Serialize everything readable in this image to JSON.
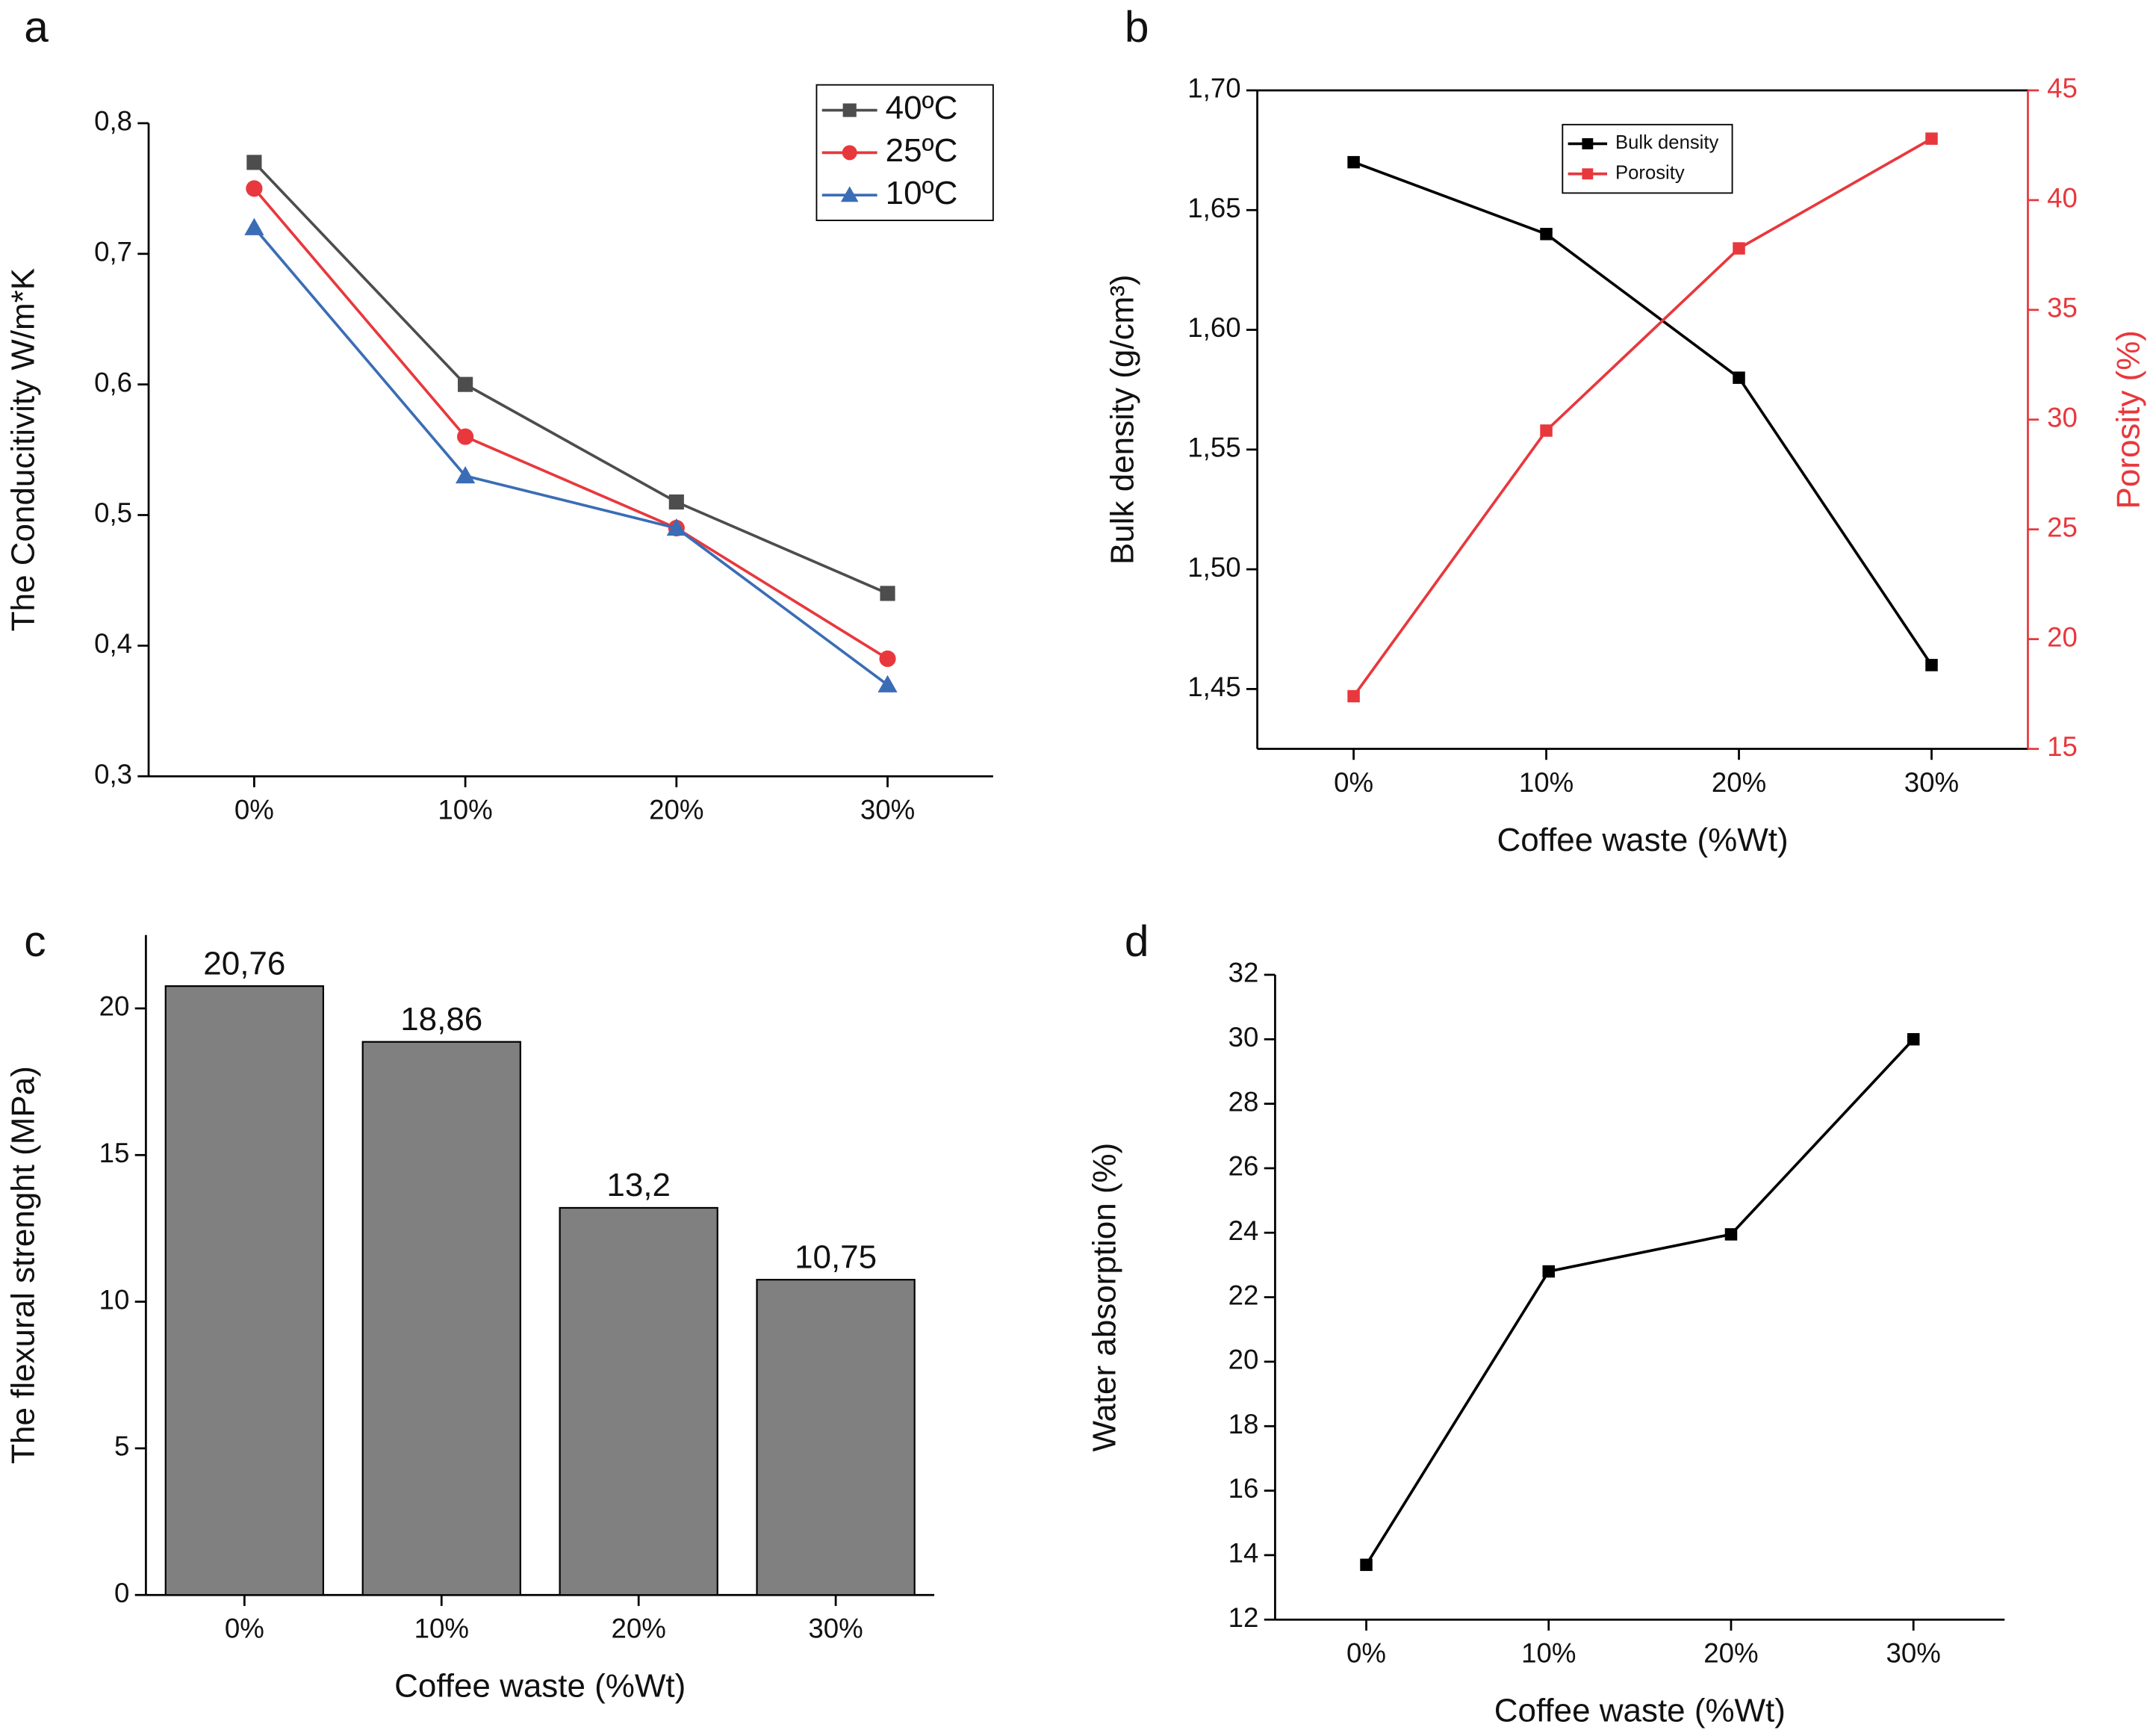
{
  "chart_data": [
    {
      "type": "line",
      "panel": "a",
      "y_label": "The Conducitivity W/m*K",
      "categories": [
        "0%",
        "10%",
        "20%",
        "30%"
      ],
      "series": [
        {
          "name": "40ºC",
          "color": "#4d4d4d",
          "marker": "square",
          "values": [
            0.77,
            0.6,
            0.51,
            0.44
          ]
        },
        {
          "name": "25ºC",
          "color": "#e8383d",
          "marker": "circle",
          "values": [
            0.75,
            0.56,
            0.49,
            0.39
          ]
        },
        {
          "name": "10ºC",
          "color": "#3a6db5",
          "marker": "triangle",
          "values": [
            0.72,
            0.53,
            0.49,
            0.37
          ]
        }
      ],
      "ylim": [
        0.3,
        0.8
      ],
      "yticks": [
        {
          "value": 0.3,
          "label": "0,3"
        },
        {
          "value": 0.4,
          "label": "0,4"
        },
        {
          "value": 0.5,
          "label": "0,5"
        },
        {
          "value": 0.6,
          "label": "0,6"
        },
        {
          "value": 0.7,
          "label": "0,7"
        },
        {
          "value": 0.8,
          "label": "0,8"
        }
      ],
      "legend": "upper right",
      "frame": false
    },
    {
      "type": "line",
      "panel": "b",
      "x_label": "Coffee waste (%Wt)",
      "y_label": "Bulk density (g/cm³)",
      "y2_label": "Porosity (%)",
      "categories": [
        "0%",
        "10%",
        "20%",
        "30%"
      ],
      "series": [
        {
          "name": "Bulk density",
          "color": "#000000",
          "marker": "square",
          "values": [
            1.67,
            1.64,
            1.58,
            1.46
          ]
        },
        {
          "name": "Porosity",
          "color": "#e8383d",
          "marker": "square",
          "axis": "y2",
          "values": [
            17.4,
            29.5,
            37.8,
            42.8
          ]
        }
      ],
      "ylim": [
        1.425,
        1.7
      ],
      "yticks": [
        {
          "value": 1.45,
          "label": "1,45"
        },
        {
          "value": 1.5,
          "label": "1,50"
        },
        {
          "value": 1.55,
          "label": "1,55"
        },
        {
          "value": 1.6,
          "label": "1,60"
        },
        {
          "value": 1.65,
          "label": "1,65"
        },
        {
          "value": 1.7,
          "label": "1,70"
        }
      ],
      "y2lim": [
        15,
        45
      ],
      "y2ticks": [
        15,
        20,
        25,
        30,
        35,
        40,
        45
      ],
      "y2color": "#e8383d",
      "legend": "upper center",
      "frame": true
    },
    {
      "type": "bar",
      "panel": "c",
      "x_label": "Coffee waste (%Wt)",
      "y_label": "The flexural strenght (MPa)",
      "categories": [
        "0%",
        "10%",
        "20%",
        "30%"
      ],
      "values": [
        20.76,
        18.86,
        13.2,
        10.75
      ],
      "value_labels": [
        "20,76",
        "18,86",
        "13,2",
        "10,75"
      ],
      "color": "#808080",
      "ylim": [
        0,
        22.5
      ],
      "yticks": [
        0,
        5,
        10,
        15,
        20
      ],
      "frame": false
    },
    {
      "type": "line",
      "panel": "d",
      "x_label": "Coffee waste (%Wt)",
      "y_label": "Water absorption (%)",
      "categories": [
        "0%",
        "10%",
        "20%",
        "30%"
      ],
      "series": [
        {
          "color": "#000000",
          "marker": "square",
          "values": [
            13.7,
            22.8,
            23.95,
            30
          ]
        }
      ],
      "ylim": [
        12,
        32
      ],
      "yticks": [
        12,
        14,
        16,
        18,
        20,
        22,
        24,
        26,
        28,
        30,
        32
      ],
      "frame": false
    }
  ]
}
